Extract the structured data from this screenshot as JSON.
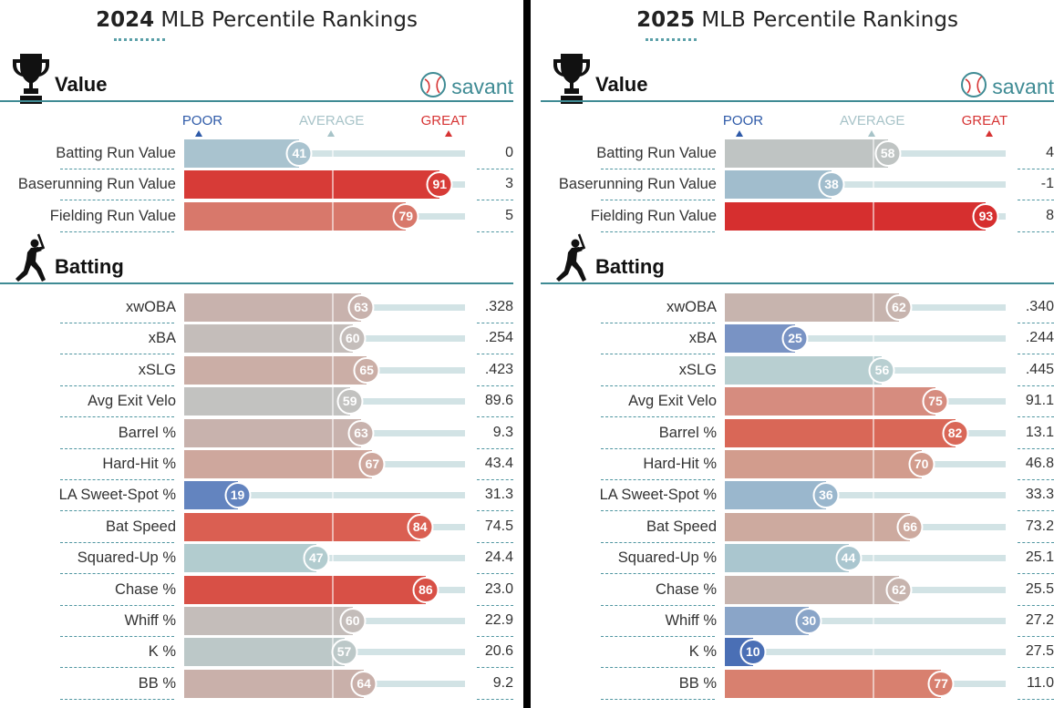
{
  "panels": [
    {
      "title_year": "2024",
      "title_rest": " MLB Percentile Rankings",
      "brand": "savant",
      "sections": [
        {
          "name": "Value",
          "icon": "trophy-icon"
        },
        {
          "name": "Batting",
          "icon": "batter-icon"
        }
      ],
      "header": {
        "poor": "POOR",
        "average": "AVERAGE",
        "great": "GREAT"
      }
    },
    {
      "title_year": "2025",
      "title_rest": " MLB Percentile Rankings",
      "brand": "savant",
      "sections": [
        {
          "name": "Value",
          "icon": "trophy-icon"
        },
        {
          "name": "Batting",
          "icon": "batter-icon"
        }
      ],
      "header": {
        "poor": "POOR",
        "average": "AVERAGE",
        "great": "GREAT"
      }
    }
  ],
  "chart_data": [
    {
      "type": "bar",
      "title": "2024 MLB Percentile Rankings",
      "xlim": [
        0,
        100
      ],
      "sections": [
        {
          "name": "Value",
          "rows": [
            {
              "label": "Batting Run Value",
              "percentile": 41,
              "value": "0",
              "color": "#a9c3cf"
            },
            {
              "label": "Baserunning Run Value",
              "percentile": 91,
              "value": "3",
              "color": "#d73b37"
            },
            {
              "label": "Fielding Run Value",
              "percentile": 79,
              "value": "5",
              "color": "#d8786b"
            }
          ]
        },
        {
          "name": "Batting",
          "rows": [
            {
              "label": "xwOBA",
              "percentile": 63,
              "value": ".328",
              "color": "#c8b2ad"
            },
            {
              "label": "xBA",
              "percentile": 60,
              "value": ".254",
              "color": "#c4bdba"
            },
            {
              "label": "xSLG",
              "percentile": 65,
              "value": ".423",
              "color": "#cbaea6"
            },
            {
              "label": "Avg Exit Velo",
              "percentile": 59,
              "value": "89.6",
              "color": "#c2c2c0"
            },
            {
              "label": "Barrel %",
              "percentile": 63,
              "value": "9.3",
              "color": "#c8b2ad"
            },
            {
              "label": "Hard-Hit %",
              "percentile": 67,
              "value": "43.4",
              "color": "#cea79d"
            },
            {
              "label": "LA Sweet-Spot %",
              "percentile": 19,
              "value": "31.3",
              "color": "#6384bf"
            },
            {
              "label": "Bat Speed",
              "percentile": 84,
              "value": "74.5",
              "color": "#da5f52"
            },
            {
              "label": "Squared-Up %",
              "percentile": 47,
              "value": "24.4",
              "color": "#b2cccf"
            },
            {
              "label": "Chase %",
              "percentile": 86,
              "value": "23.0",
              "color": "#d85046"
            },
            {
              "label": "Whiff %",
              "percentile": 60,
              "value": "22.9",
              "color": "#c4bdba"
            },
            {
              "label": "K %",
              "percentile": 57,
              "value": "20.6",
              "color": "#bcc8c8"
            },
            {
              "label": "BB %",
              "percentile": 64,
              "value": "9.2",
              "color": "#c9b0aa"
            }
          ]
        }
      ]
    },
    {
      "type": "bar",
      "title": "2025 MLB Percentile Rankings",
      "xlim": [
        0,
        100
      ],
      "sections": [
        {
          "name": "Value",
          "rows": [
            {
              "label": "Batting Run Value",
              "percentile": 58,
              "value": "4",
              "color": "#bfc4c3"
            },
            {
              "label": "Baserunning Run Value",
              "percentile": 38,
              "value": "-1",
              "color": "#a1bdcd"
            },
            {
              "label": "Fielding Run Value",
              "percentile": 93,
              "value": "8",
              "color": "#d62f2f"
            }
          ]
        },
        {
          "name": "Batting",
          "rows": [
            {
              "label": "xwOBA",
              "percentile": 62,
              "value": ".340",
              "color": "#c7b4ae"
            },
            {
              "label": "xBA",
              "percentile": 25,
              "value": ".244",
              "color": "#7993c4"
            },
            {
              "label": "xSLG",
              "percentile": 56,
              "value": ".445",
              "color": "#b8cfd1"
            },
            {
              "label": "Avg Exit Velo",
              "percentile": 75,
              "value": "91.1",
              "color": "#d68c7f"
            },
            {
              "label": "Barrel %",
              "percentile": 82,
              "value": "13.1",
              "color": "#d96757"
            },
            {
              "label": "Hard-Hit %",
              "percentile": 70,
              "value": "46.8",
              "color": "#d29c8d"
            },
            {
              "label": "LA Sweet-Spot %",
              "percentile": 36,
              "value": "33.3",
              "color": "#9ab7cd"
            },
            {
              "label": "Bat Speed",
              "percentile": 66,
              "value": "73.2",
              "color": "#cdaa9f"
            },
            {
              "label": "Squared-Up %",
              "percentile": 44,
              "value": "25.1",
              "color": "#aac6cf"
            },
            {
              "label": "Chase %",
              "percentile": 62,
              "value": "25.5",
              "color": "#c7b4ae"
            },
            {
              "label": "Whiff %",
              "percentile": 30,
              "value": "27.2",
              "color": "#8aa5c8"
            },
            {
              "label": "K %",
              "percentile": 10,
              "value": "27.5",
              "color": "#4a6fb5"
            },
            {
              "label": "BB %",
              "percentile": 77,
              "value": "11.0",
              "color": "#d8806f"
            }
          ]
        }
      ]
    }
  ]
}
